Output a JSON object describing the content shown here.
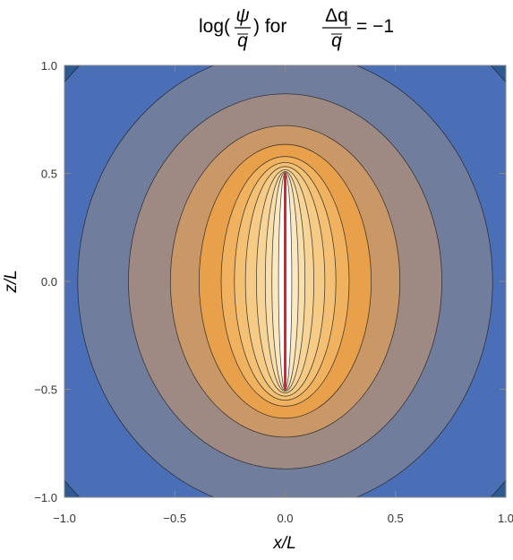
{
  "chart_data": {
    "type": "contour",
    "title_parts": [
      "log(",
      "ψ",
      "q",
      ") for",
      "Δq",
      "q",
      "= −1"
    ],
    "xlabel": "x/L",
    "ylabel": "z/L",
    "xlim": [
      -1,
      1
    ],
    "ylim": [
      -1,
      1
    ],
    "xticks": [
      {
        "value": -1,
        "label": "−1.0"
      },
      {
        "value": -0.5,
        "label": "−0.5"
      },
      {
        "value": 0,
        "label": "0.0"
      },
      0.5,
      {
        "value": 1,
        "label": "1.0"
      }
    ],
    "yticks": [
      {
        "value": -1,
        "label": "−1.0"
      },
      {
        "value": -0.5,
        "label": "−0.5"
      },
      {
        "value": 0,
        "label": "0.0"
      },
      0.5,
      {
        "value": 1,
        "label": "1.0"
      }
    ],
    "background_color": "#2d5a92",
    "contours": [
      {
        "b": 1.32,
        "color": "#4b6fb6"
      },
      {
        "b": 0.94,
        "color": "#707d9c"
      },
      {
        "b": 0.71,
        "color": "#9e8a82"
      },
      {
        "b": 0.52,
        "color": "#c99866"
      },
      {
        "b": 0.39,
        "color": "#e9a04a"
      },
      {
        "b": 0.29,
        "color": "#f0b25f"
      },
      {
        "b": 0.23,
        "color": "#f3c074"
      },
      {
        "b": 0.18,
        "color": "#f5cb86"
      },
      {
        "b": 0.13,
        "color": "#f7d598"
      },
      {
        "b": 0.09,
        "color": "#f9dfab"
      },
      {
        "b": 0.06,
        "color": "#fbe8c0"
      },
      {
        "b": 0.03,
        "color": "#ffffff"
      }
    ],
    "segment": {
      "z": [
        -0.5,
        0.5
      ],
      "color": "#e0202a"
    }
  }
}
